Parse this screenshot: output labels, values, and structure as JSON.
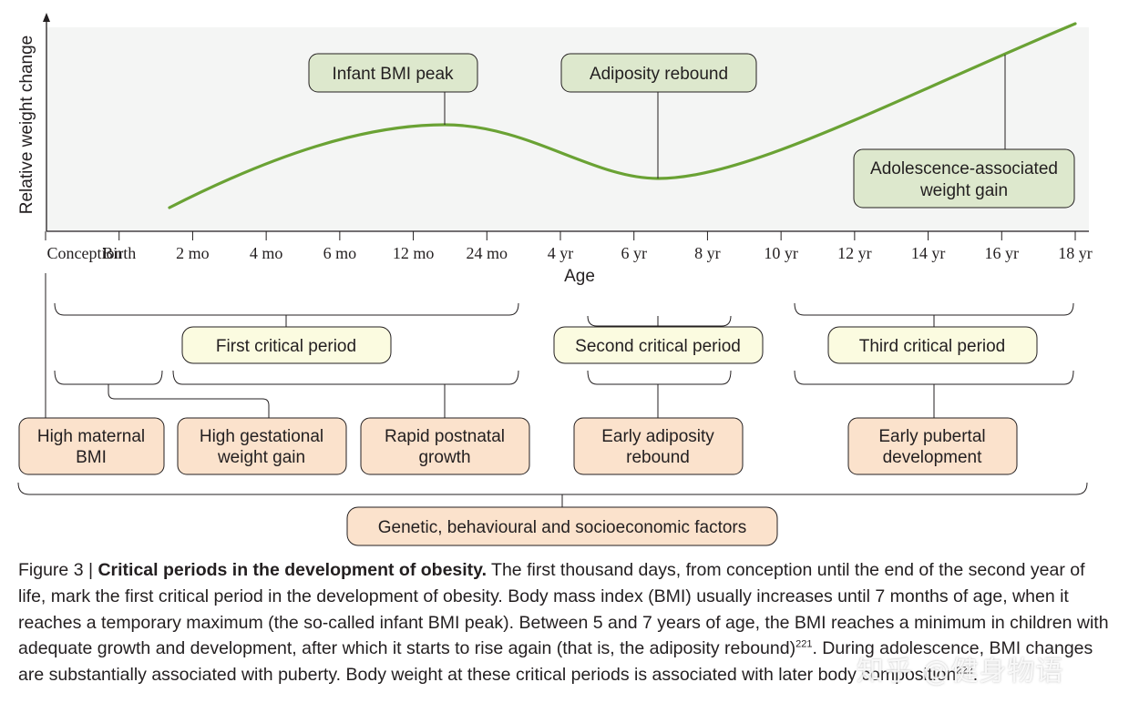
{
  "axis": {
    "y_label": "Relative weight change",
    "x_label": "Age",
    "ticks": [
      "Conception",
      "Birth",
      "2 mo",
      "4 mo",
      "6 mo",
      "12 mo",
      "24 mo",
      "4 yr",
      "6 yr",
      "8 yr",
      "10 yr",
      "12 yr",
      "14 yr",
      "16 yr",
      "18 yr"
    ]
  },
  "curve_labels": {
    "infant_peak": "Infant BMI peak",
    "adiposity_rebound": "Adiposity rebound",
    "adolescence_gain": [
      "Adolescence-associated",
      "weight gain"
    ]
  },
  "periods": {
    "first": "First critical period",
    "second": "Second critical period",
    "third": "Third critical period"
  },
  "factors": {
    "maternal_bmi": [
      "High maternal",
      "BMI"
    ],
    "gestational_gain": [
      "High gestational",
      "weight gain"
    ],
    "postnatal_growth": [
      "Rapid postnatal",
      "growth"
    ],
    "early_rebound": [
      "Early adiposity",
      "rebound"
    ],
    "early_puberty": [
      "Early pubertal",
      "development"
    ],
    "genetic": "Genetic, behavioural and socioeconomic factors"
  },
  "caption": {
    "fig_num": "Figure 3 | ",
    "title": "Critical periods in the development of obesity.",
    "body1": " The first thousand days, from conception until the end of the second year of life, mark the first critical period in the development of obesity. Body mass index (BMI) usually increases until 7 months of age, when it reaches a temporary maximum (the so-called infant BMI peak). Between 5 and 7 years of age, the BMI reaches a minimum in children with adequate growth and development, after which it starts to rise again (that is, the adiposity rebound)",
    "ref1": "221",
    "body2": ". During adolescence, BMI changes are substantially associated with puberty. Body weight at these critical periods is associated with later body composition",
    "ref2": "222",
    "end": "."
  },
  "watermark": "知乎 @健身物语",
  "colors": {
    "curve": "#6aa234",
    "chart_bg": "#f4f5f4",
    "green_box": "#dde8cd",
    "yellow_box": "#fbfbe0",
    "peach_box": "#fbe2cc",
    "line": "#231f20"
  }
}
